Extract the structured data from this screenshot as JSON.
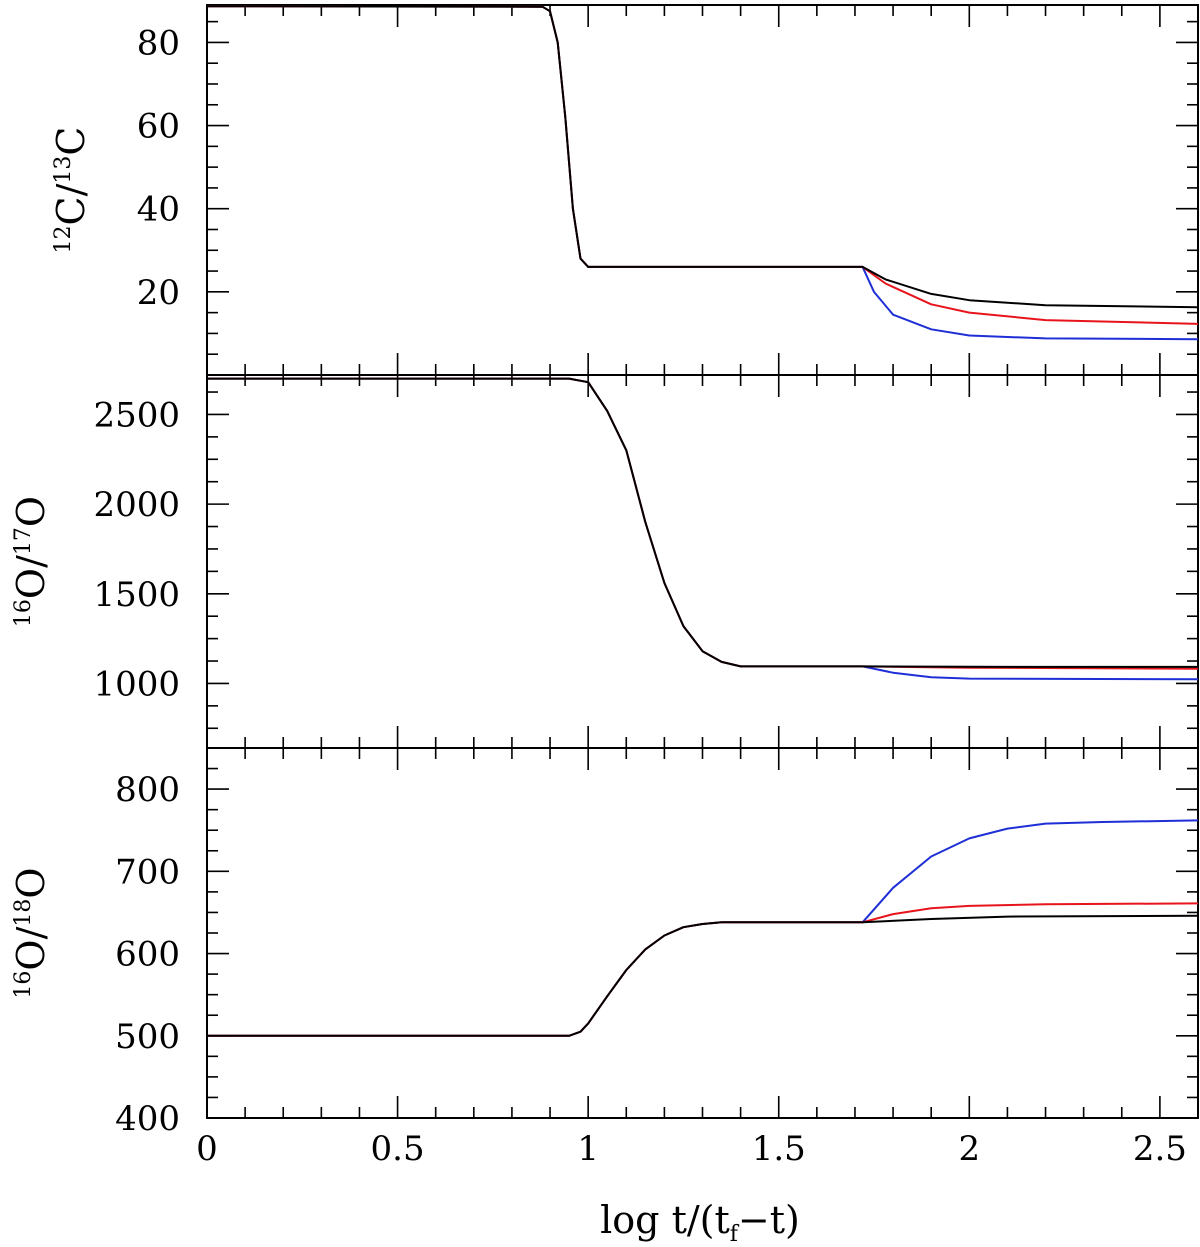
{
  "chart_data": {
    "type": "line",
    "xlabel": {
      "main": "log  t/(t",
      "sub": "f",
      "tail": "−t)"
    },
    "xlim": [
      0,
      2.6
    ],
    "xticks": [
      0,
      0.5,
      1,
      1.5,
      2,
      2.5
    ],
    "xtick_labels": [
      "0",
      "0.5",
      "1",
      "1.5",
      "2",
      "2.5"
    ],
    "series_colors": {
      "black": "#000000",
      "red": "#e8141c",
      "blue": "#1f2fd6"
    },
    "panels": [
      {
        "ylabel": {
          "sup1": "12",
          "b1": "C/",
          "sup2": "13",
          "b2": "C"
        },
        "ylim": [
          0,
          89
        ],
        "yticks": [
          20,
          40,
          60,
          80
        ],
        "ytick_labels": [
          "20",
          "40",
          "60",
          "80"
        ],
        "series": [
          {
            "color": "blue",
            "points": [
              [
                0,
                88.7
              ],
              [
                0.88,
                88.6
              ],
              [
                0.9,
                87.5
              ],
              [
                0.92,
                80
              ],
              [
                0.94,
                62
              ],
              [
                0.96,
                40
              ],
              [
                0.98,
                28
              ],
              [
                1.0,
                26
              ],
              [
                1.72,
                26
              ],
              [
                1.75,
                20
              ],
              [
                1.8,
                14.5
              ],
              [
                1.9,
                11
              ],
              [
                2.0,
                9.5
              ],
              [
                2.2,
                8.8
              ],
              [
                2.6,
                8.6
              ]
            ]
          },
          {
            "color": "red",
            "points": [
              [
                0,
                88.7
              ],
              [
                0.88,
                88.6
              ],
              [
                0.9,
                87.5
              ],
              [
                0.92,
                80
              ],
              [
                0.94,
                62
              ],
              [
                0.96,
                40
              ],
              [
                0.98,
                28
              ],
              [
                1.0,
                26
              ],
              [
                1.72,
                26
              ],
              [
                1.78,
                22
              ],
              [
                1.9,
                17
              ],
              [
                2.0,
                15
              ],
              [
                2.2,
                13.2
              ],
              [
                2.6,
                12.3
              ]
            ]
          },
          {
            "color": "black",
            "points": [
              [
                0,
                88.7
              ],
              [
                0.88,
                88.6
              ],
              [
                0.9,
                87.5
              ],
              [
                0.92,
                80
              ],
              [
                0.94,
                62
              ],
              [
                0.96,
                40
              ],
              [
                0.98,
                28
              ],
              [
                1.0,
                26
              ],
              [
                1.72,
                26
              ],
              [
                1.78,
                23
              ],
              [
                1.9,
                19.5
              ],
              [
                2.0,
                18
              ],
              [
                2.2,
                16.8
              ],
              [
                2.6,
                16.3
              ]
            ]
          }
        ]
      },
      {
        "ylabel": {
          "sup1": "16",
          "b1": "O/",
          "sup2": "17",
          "b2": "O"
        },
        "ylim": [
          640,
          2720
        ],
        "yticks": [
          1000,
          1500,
          2000,
          2500
        ],
        "ytick_labels": [
          "1000",
          "1500",
          "2000",
          "2500"
        ],
        "series": [
          {
            "color": "blue",
            "points": [
              [
                0,
                2700
              ],
              [
                0.95,
                2700
              ],
              [
                1.0,
                2680
              ],
              [
                1.05,
                2520
              ],
              [
                1.1,
                2300
              ],
              [
                1.15,
                1900
              ],
              [
                1.2,
                1560
              ],
              [
                1.25,
                1320
              ],
              [
                1.3,
                1180
              ],
              [
                1.35,
                1120
              ],
              [
                1.4,
                1095
              ],
              [
                1.72,
                1095
              ],
              [
                1.8,
                1060
              ],
              [
                1.9,
                1035
              ],
              [
                2.0,
                1027
              ],
              [
                2.6,
                1023
              ]
            ]
          },
          {
            "color": "red",
            "points": [
              [
                0,
                2700
              ],
              [
                0.95,
                2700
              ],
              [
                1.0,
                2680
              ],
              [
                1.05,
                2520
              ],
              [
                1.1,
                2300
              ],
              [
                1.15,
                1900
              ],
              [
                1.2,
                1560
              ],
              [
                1.25,
                1320
              ],
              [
                1.3,
                1180
              ],
              [
                1.35,
                1120
              ],
              [
                1.4,
                1095
              ],
              [
                1.72,
                1095
              ],
              [
                2.0,
                1088
              ],
              [
                2.6,
                1082
              ]
            ]
          },
          {
            "color": "black",
            "points": [
              [
                0,
                2700
              ],
              [
                0.95,
                2700
              ],
              [
                1.0,
                2680
              ],
              [
                1.05,
                2520
              ],
              [
                1.1,
                2300
              ],
              [
                1.15,
                1900
              ],
              [
                1.2,
                1560
              ],
              [
                1.25,
                1320
              ],
              [
                1.3,
                1180
              ],
              [
                1.35,
                1120
              ],
              [
                1.4,
                1095
              ],
              [
                1.72,
                1095
              ],
              [
                2.0,
                1093
              ],
              [
                2.6,
                1092
              ]
            ]
          }
        ]
      },
      {
        "ylabel": {
          "sup1": "16",
          "b1": "O/",
          "sup2": "18",
          "b2": "O"
        },
        "ylim": [
          400,
          850
        ],
        "yticks": [
          400,
          500,
          600,
          700,
          800
        ],
        "ytick_labels": [
          "400",
          "500",
          "600",
          "700",
          "800"
        ],
        "series": [
          {
            "color": "blue",
            "points": [
              [
                0,
                500
              ],
              [
                0.95,
                500
              ],
              [
                0.98,
                505
              ],
              [
                1.0,
                515
              ],
              [
                1.05,
                548
              ],
              [
                1.1,
                580
              ],
              [
                1.15,
                605
              ],
              [
                1.2,
                622
              ],
              [
                1.25,
                632
              ],
              [
                1.3,
                636
              ],
              [
                1.35,
                638
              ],
              [
                1.72,
                638
              ],
              [
                1.8,
                680
              ],
              [
                1.9,
                718
              ],
              [
                2.0,
                740
              ],
              [
                2.1,
                752
              ],
              [
                2.2,
                758
              ],
              [
                2.35,
                760
              ],
              [
                2.6,
                762
              ]
            ]
          },
          {
            "color": "red",
            "points": [
              [
                0,
                500
              ],
              [
                0.95,
                500
              ],
              [
                0.98,
                505
              ],
              [
                1.0,
                515
              ],
              [
                1.05,
                548
              ],
              [
                1.1,
                580
              ],
              [
                1.15,
                605
              ],
              [
                1.2,
                622
              ],
              [
                1.25,
                632
              ],
              [
                1.3,
                636
              ],
              [
                1.35,
                638
              ],
              [
                1.72,
                638
              ],
              [
                1.8,
                648
              ],
              [
                1.9,
                655
              ],
              [
                2.0,
                658
              ],
              [
                2.2,
                660
              ],
              [
                2.6,
                661
              ]
            ]
          },
          {
            "color": "black",
            "points": [
              [
                0,
                500
              ],
              [
                0.95,
                500
              ],
              [
                0.98,
                505
              ],
              [
                1.0,
                515
              ],
              [
                1.05,
                548
              ],
              [
                1.1,
                580
              ],
              [
                1.15,
                605
              ],
              [
                1.2,
                622
              ],
              [
                1.25,
                632
              ],
              [
                1.3,
                636
              ],
              [
                1.35,
                638
              ],
              [
                1.72,
                638
              ],
              [
                1.9,
                642
              ],
              [
                2.1,
                645
              ],
              [
                2.6,
                646
              ]
            ]
          }
        ]
      }
    ]
  }
}
